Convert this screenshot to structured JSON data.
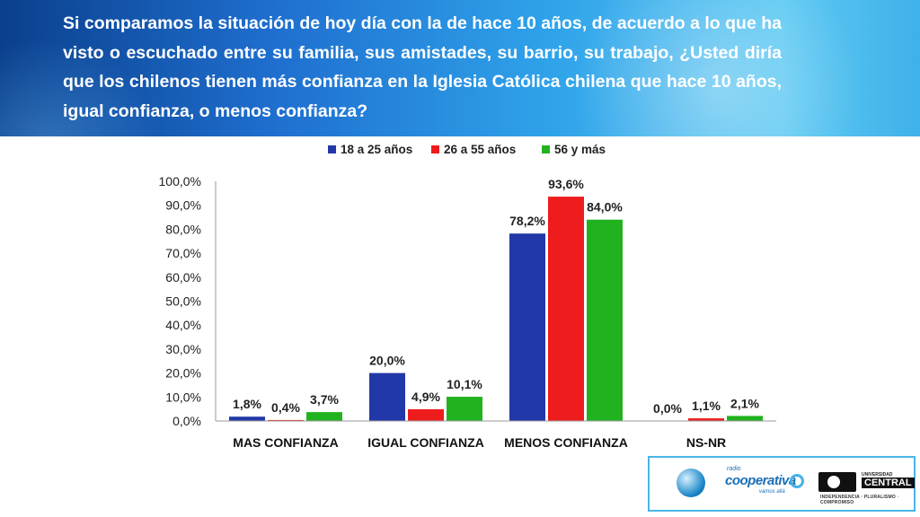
{
  "question": "Si comparamos la situación de hoy día con la de hace 10 años, de acuerdo a lo que ha visto o escuchado entre su familia, sus amistades, su barrio, su trabajo, ¿Usted diría que los chilenos tienen más confianza en la Iglesia Católica chilena que hace 10 años, igual confianza, o menos confianza?",
  "colors": {
    "s0": "#2238a8",
    "s1": "#ee1c1c",
    "s2": "#21b31f",
    "banner": "#1f6fcf"
  },
  "chart_data": {
    "type": "bar",
    "title": "",
    "xlabel": "",
    "ylabel": "",
    "ylim": [
      0,
      100
    ],
    "yticks": [
      "0,0%",
      "10,0%",
      "20,0%",
      "30,0%",
      "40,0%",
      "50,0%",
      "60,0%",
      "70,0%",
      "80,0%",
      "90,0%",
      "100,0%"
    ],
    "categories": [
      "MAS CONFIANZA",
      "IGUAL CONFIANZA",
      "MENOS CONFIANZA",
      "NS-NR"
    ],
    "legend_position": "top",
    "grid": false,
    "series": [
      {
        "name": "18 a 25 años",
        "color": "#2238a8",
        "values": [
          1.8,
          20.0,
          78.2,
          0.0
        ],
        "labels": [
          "1,8%",
          "20,0%",
          "78,2%",
          "0,0%"
        ]
      },
      {
        "name": "26 a 55 años",
        "color": "#ee1c1c",
        "values": [
          0.4,
          4.9,
          93.6,
          1.1
        ],
        "labels": [
          "0,4%",
          "4,9%",
          "93,6%",
          "1,1%"
        ]
      },
      {
        "name": "56 y más",
        "color": "#21b31f",
        "values": [
          3.7,
          10.1,
          84.0,
          2.1
        ],
        "labels": [
          "3,7%",
          "10,1%",
          "84,0%",
          "2,1%"
        ]
      }
    ]
  },
  "logos": {
    "coop_small": "radio",
    "coop_name": "cooperativa",
    "coop_tag": "vamos allá",
    "uc_small": "UNIVERSIDAD",
    "uc_name": "CENTRAL",
    "uc_tag": "INDEPENDENCIA · PLURALISMO · COMPROMISO"
  }
}
